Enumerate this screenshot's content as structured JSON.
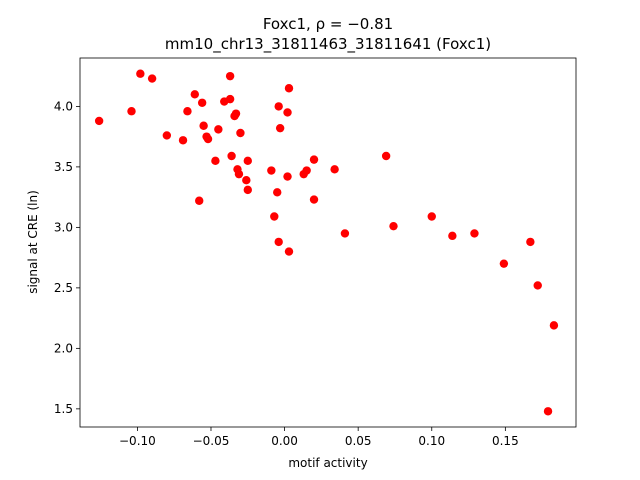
{
  "chart_data": {
    "type": "scatter",
    "title_line1": "Foxc1, ρ = −0.81",
    "title_line2": "mm10_chr13_31811463_31811641 (Foxc1)",
    "xlabel": "motif activity",
    "ylabel": "signal at CRE (ln)",
    "xlim": [
      -0.139,
      0.198
    ],
    "ylim": [
      1.35,
      4.4
    ],
    "xticks": [
      -0.1,
      -0.05,
      0.0,
      0.05,
      0.1,
      0.15
    ],
    "xtick_labels": [
      "−0.10",
      "−0.05",
      "0.00",
      "0.05",
      "0.10",
      "0.15"
    ],
    "yticks": [
      1.5,
      2.0,
      2.5,
      3.0,
      3.5,
      4.0
    ],
    "ytick_labels": [
      "1.5",
      "2.0",
      "2.5",
      "3.0",
      "3.5",
      "4.0"
    ],
    "grid": false,
    "marker_color": "#ff0000",
    "points": [
      {
        "x": -0.126,
        "y": 3.88
      },
      {
        "x": -0.104,
        "y": 3.96
      },
      {
        "x": -0.098,
        "y": 4.27
      },
      {
        "x": -0.09,
        "y": 4.23
      },
      {
        "x": -0.08,
        "y": 3.76
      },
      {
        "x": -0.069,
        "y": 3.72
      },
      {
        "x": -0.066,
        "y": 3.96
      },
      {
        "x": -0.061,
        "y": 4.1
      },
      {
        "x": -0.058,
        "y": 3.22
      },
      {
        "x": -0.056,
        "y": 4.03
      },
      {
        "x": -0.055,
        "y": 3.84
      },
      {
        "x": -0.053,
        "y": 3.75
      },
      {
        "x": -0.052,
        "y": 3.73
      },
      {
        "x": -0.047,
        "y": 3.55
      },
      {
        "x": -0.045,
        "y": 3.81
      },
      {
        "x": -0.041,
        "y": 4.04
      },
      {
        "x": -0.037,
        "y": 4.25
      },
      {
        "x": -0.037,
        "y": 4.06
      },
      {
        "x": -0.036,
        "y": 3.59
      },
      {
        "x": -0.034,
        "y": 3.92
      },
      {
        "x": -0.033,
        "y": 3.94
      },
      {
        "x": -0.032,
        "y": 3.48
      },
      {
        "x": -0.031,
        "y": 3.44
      },
      {
        "x": -0.03,
        "y": 3.78
      },
      {
        "x": -0.026,
        "y": 3.39
      },
      {
        "x": -0.025,
        "y": 3.55
      },
      {
        "x": -0.025,
        "y": 3.31
      },
      {
        "x": -0.009,
        "y": 3.47
      },
      {
        "x": -0.007,
        "y": 3.09
      },
      {
        "x": -0.005,
        "y": 3.29
      },
      {
        "x": -0.004,
        "y": 4.0
      },
      {
        "x": -0.004,
        "y": 2.88
      },
      {
        "x": -0.003,
        "y": 3.82
      },
      {
        "x": 0.002,
        "y": 3.42
      },
      {
        "x": 0.002,
        "y": 3.95
      },
      {
        "x": 0.003,
        "y": 4.15
      },
      {
        "x": 0.003,
        "y": 2.8
      },
      {
        "x": 0.013,
        "y": 3.44
      },
      {
        "x": 0.015,
        "y": 3.47
      },
      {
        "x": 0.02,
        "y": 3.56
      },
      {
        "x": 0.02,
        "y": 3.23
      },
      {
        "x": 0.034,
        "y": 3.48
      },
      {
        "x": 0.041,
        "y": 2.95
      },
      {
        "x": 0.069,
        "y": 3.59
      },
      {
        "x": 0.074,
        "y": 3.01
      },
      {
        "x": 0.1,
        "y": 3.09
      },
      {
        "x": 0.114,
        "y": 2.93
      },
      {
        "x": 0.129,
        "y": 2.95
      },
      {
        "x": 0.149,
        "y": 2.7
      },
      {
        "x": 0.167,
        "y": 2.88
      },
      {
        "x": 0.172,
        "y": 2.52
      },
      {
        "x": 0.179,
        "y": 1.48
      },
      {
        "x": 0.183,
        "y": 2.19
      }
    ]
  }
}
